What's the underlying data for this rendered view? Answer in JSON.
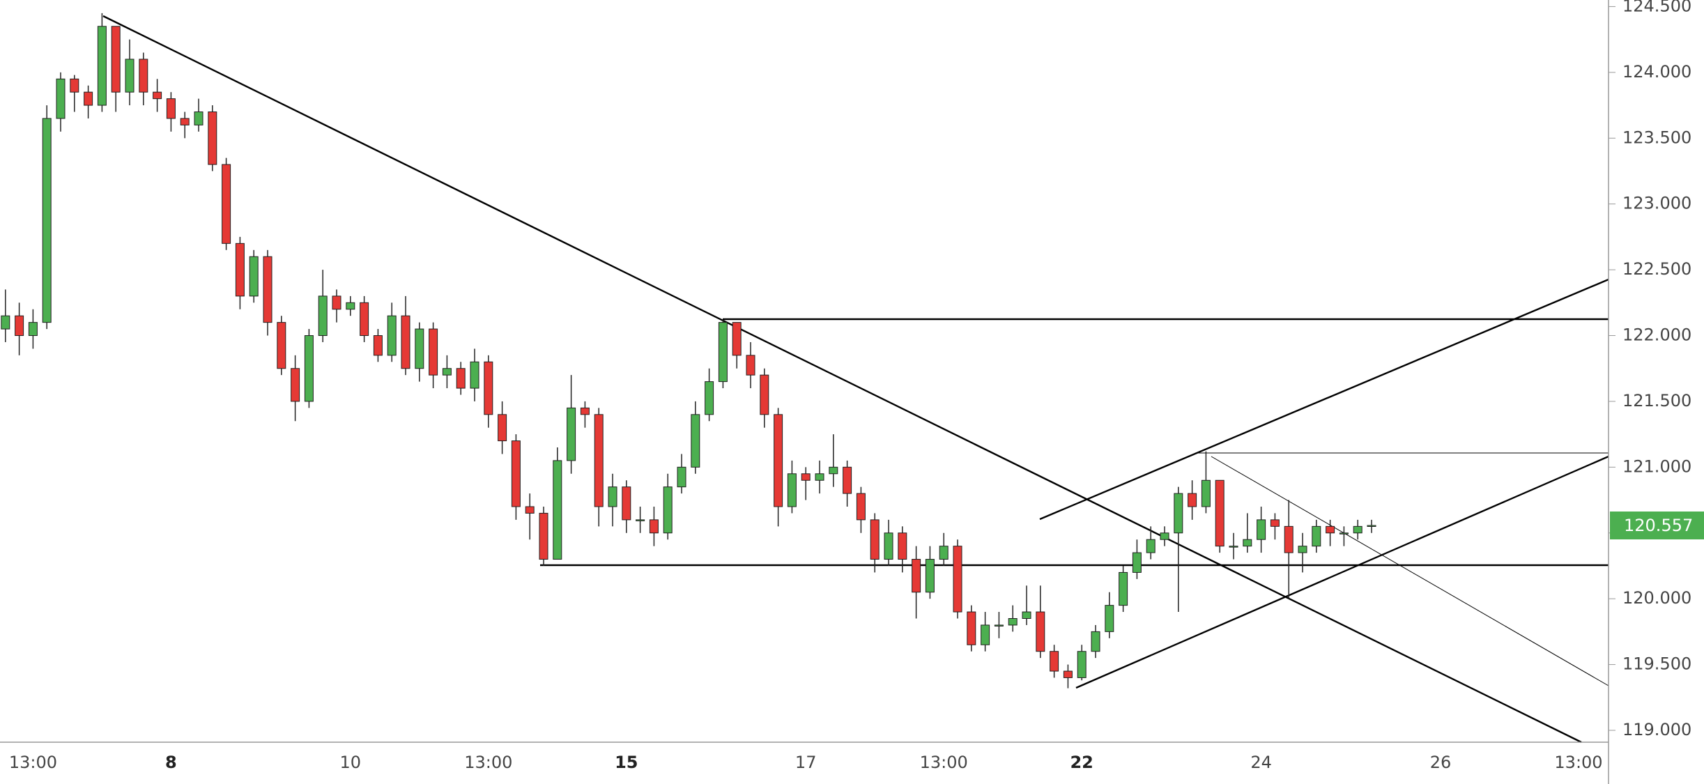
{
  "chart_data": {
    "type": "candlestick",
    "categories": [
      null,
      null,
      "13:00",
      null,
      null,
      null,
      null,
      null,
      null,
      null,
      null,
      null,
      "8",
      null,
      null,
      null,
      null,
      null,
      null,
      null,
      null,
      null,
      null,
      null,
      null,
      "10",
      null,
      null,
      null,
      null,
      null,
      null,
      null,
      null,
      null,
      "13:00",
      null,
      null,
      null,
      null,
      null,
      null,
      null,
      null,
      null,
      "15",
      null,
      null,
      null,
      null,
      null,
      null,
      null,
      null,
      null,
      null,
      null,
      null,
      "17",
      null,
      null,
      null,
      null,
      null,
      null,
      null,
      null,
      null,
      "13:00",
      null,
      null,
      null,
      null,
      null,
      null,
      null,
      null,
      null,
      "22",
      null,
      null,
      null,
      null,
      null,
      null,
      null,
      null,
      null,
      null,
      null,
      null,
      "24",
      null,
      null,
      null,
      null,
      null,
      null,
      null,
      null,
      null,
      null,
      null,
      null,
      "26",
      null,
      null,
      null,
      null,
      null,
      null,
      null,
      null,
      null,
      "13:00",
      null
    ],
    "open": [
      122.05,
      122.15,
      122.0,
      122.1,
      123.65,
      123.95,
      123.85,
      123.75,
      124.35,
      123.85,
      124.1,
      123.85,
      123.8,
      123.65,
      123.6,
      123.7,
      123.3,
      122.7,
      122.3,
      122.6,
      122.1,
      121.75,
      121.5,
      122.0,
      122.3,
      122.2,
      122.25,
      122.0,
      121.85,
      122.15,
      121.75,
      122.05,
      121.7,
      121.75,
      121.6,
      121.8,
      121.4,
      121.2,
      120.7,
      120.65,
      120.3,
      121.05,
      121.45,
      121.4,
      120.7,
      120.85,
      120.6,
      120.6,
      120.5,
      120.85,
      121.0,
      121.4,
      121.65,
      122.1,
      121.85,
      121.7,
      121.4,
      120.7,
      120.95,
      120.9,
      120.95,
      121.0,
      120.8,
      120.6,
      120.3,
      120.5,
      120.3,
      120.05,
      120.3,
      120.4,
      119.9,
      119.65,
      119.8,
      119.8,
      119.85,
      119.9,
      119.6,
      119.45,
      119.4,
      119.6,
      119.75,
      119.95,
      120.2,
      120.35,
      120.45,
      120.5,
      120.8,
      120.7,
      120.9,
      120.4,
      120.4,
      120.45,
      120.6,
      120.55,
      120.35,
      120.4,
      120.55,
      120.5,
      120.5,
      120.55,
      null,
      null,
      null,
      null,
      null,
      null,
      null,
      null,
      null,
      null,
      null,
      null,
      null,
      null,
      null,
      null
    ],
    "high": [
      122.35,
      122.25,
      122.2,
      123.75,
      124.0,
      123.98,
      123.9,
      124.45,
      124.3,
      124.25,
      124.15,
      123.95,
      123.85,
      123.7,
      123.8,
      123.75,
      123.35,
      122.75,
      122.65,
      122.65,
      122.15,
      121.85,
      122.05,
      122.5,
      122.35,
      122.3,
      122.3,
      122.05,
      122.25,
      122.3,
      122.1,
      122.1,
      121.85,
      121.8,
      121.9,
      121.85,
      121.5,
      121.25,
      120.8,
      120.7,
      121.15,
      121.7,
      121.5,
      121.45,
      120.95,
      120.9,
      120.7,
      120.7,
      120.95,
      121.1,
      121.5,
      121.75,
      122.12,
      122.1,
      121.95,
      121.75,
      121.45,
      121.05,
      121.0,
      121.05,
      121.25,
      121.05,
      120.85,
      120.65,
      120.6,
      120.55,
      120.4,
      120.4,
      120.5,
      120.45,
      119.95,
      119.9,
      119.9,
      119.95,
      120.1,
      120.1,
      119.65,
      119.5,
      119.65,
      119.8,
      120.05,
      120.25,
      120.45,
      120.55,
      120.55,
      120.85,
      120.9,
      121.12,
      120.9,
      120.5,
      120.65,
      120.7,
      120.65,
      120.75,
      120.5,
      120.6,
      120.6,
      120.55,
      120.6,
      120.6,
      null,
      null,
      null,
      null,
      null,
      null,
      null,
      null,
      null,
      null,
      null,
      null,
      null,
      null,
      null,
      null
    ],
    "low": [
      121.95,
      121.85,
      121.9,
      122.05,
      123.55,
      123.7,
      123.65,
      123.7,
      123.7,
      123.75,
      123.75,
      123.7,
      123.55,
      123.5,
      123.55,
      123.25,
      122.65,
      122.2,
      122.25,
      122.0,
      121.7,
      121.35,
      121.45,
      121.95,
      122.1,
      122.15,
      121.95,
      121.8,
      121.8,
      121.7,
      121.65,
      121.6,
      121.6,
      121.55,
      121.5,
      121.3,
      121.1,
      120.6,
      120.45,
      120.25,
      120.3,
      120.95,
      121.3,
      120.55,
      120.55,
      120.5,
      120.5,
      120.4,
      120.45,
      120.8,
      120.95,
      121.35,
      121.6,
      121.75,
      121.6,
      121.3,
      120.55,
      120.65,
      120.75,
      120.8,
      120.85,
      120.7,
      120.5,
      120.2,
      120.25,
      120.2,
      119.85,
      120.0,
      120.25,
      119.85,
      119.6,
      119.6,
      119.7,
      119.75,
      119.8,
      119.55,
      119.4,
      119.32,
      119.38,
      119.55,
      119.7,
      119.9,
      120.15,
      120.3,
      120.4,
      119.9,
      120.6,
      120.65,
      120.35,
      120.3,
      120.35,
      120.35,
      120.45,
      120.0,
      120.2,
      120.35,
      120.4,
      120.4,
      120.45,
      120.5,
      null,
      null,
      null,
      null,
      null,
      null,
      null,
      null,
      null,
      null,
      null,
      null,
      null,
      null,
      null,
      null
    ],
    "close": [
      122.15,
      122.0,
      122.1,
      123.65,
      123.95,
      123.85,
      123.75,
      124.35,
      123.85,
      124.1,
      123.85,
      123.8,
      123.65,
      123.6,
      123.7,
      123.3,
      122.7,
      122.3,
      122.6,
      122.1,
      121.75,
      121.5,
      122.0,
      122.3,
      122.2,
      122.25,
      122.0,
      121.85,
      122.15,
      121.75,
      122.05,
      121.7,
      121.75,
      121.6,
      121.8,
      121.4,
      121.2,
      120.7,
      120.65,
      120.3,
      121.05,
      121.45,
      121.4,
      120.7,
      120.85,
      120.6,
      120.6,
      120.5,
      120.85,
      121.0,
      121.4,
      121.65,
      122.1,
      121.85,
      121.7,
      121.4,
      120.7,
      120.95,
      120.9,
      120.95,
      121.0,
      120.8,
      120.6,
      120.3,
      120.5,
      120.3,
      120.05,
      120.3,
      120.4,
      119.9,
      119.65,
      119.8,
      119.8,
      119.85,
      119.9,
      119.6,
      119.45,
      119.4,
      119.6,
      119.75,
      119.95,
      120.2,
      120.35,
      120.45,
      120.5,
      120.8,
      120.7,
      120.9,
      120.4,
      120.4,
      120.45,
      120.6,
      120.55,
      120.35,
      120.4,
      120.55,
      120.5,
      120.5,
      120.55,
      120.557,
      null,
      null,
      null,
      null,
      null,
      null,
      null,
      null,
      null,
      null,
      null,
      null,
      null,
      null,
      null,
      null
    ],
    "up_color": "#4caf50",
    "down_color": "#e53935",
    "last_price_color": "#4caf50",
    "ylim": [
      118.91,
      124.55
    ],
    "yticks": [
      {
        "value": 119.0,
        "label": "119.000"
      },
      {
        "value": 119.5,
        "label": "119.500"
      },
      {
        "value": 120.0,
        "label": "120.000"
      },
      {
        "value": 120.5,
        "label": "120.500"
      },
      {
        "value": 121.0,
        "label": "121.000"
      },
      {
        "value": 121.5,
        "label": "121.500"
      },
      {
        "value": 122.0,
        "label": "122.000"
      },
      {
        "value": 122.5,
        "label": "122.500"
      },
      {
        "value": 123.0,
        "label": "123.000"
      },
      {
        "value": 123.5,
        "label": "123.500"
      },
      {
        "value": 124.0,
        "label": "124.000"
      },
      {
        "value": 124.5,
        "label": "124.500"
      }
    ]
  }
}
